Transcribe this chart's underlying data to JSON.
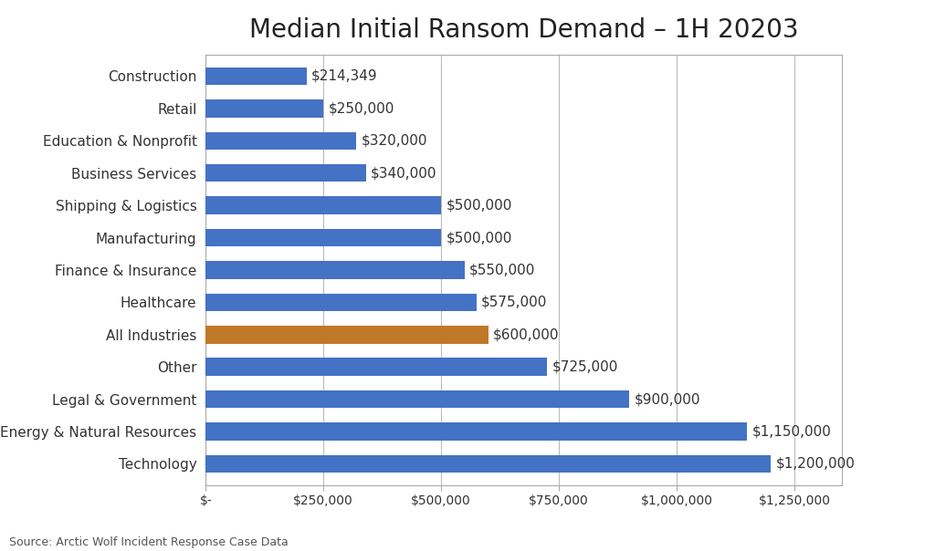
{
  "title": "Median Initial Ransom Demand – 1H 20203",
  "categories": [
    "Technology",
    "Energy & Natural Resources",
    "Legal & Government",
    "Other",
    "All Industries",
    "Healthcare",
    "Finance & Insurance",
    "Manufacturing",
    "Shipping & Logistics",
    "Business Services",
    "Education & Nonprofit",
    "Retail",
    "Construction"
  ],
  "values": [
    1200000,
    1150000,
    900000,
    725000,
    600000,
    575000,
    550000,
    500000,
    500000,
    340000,
    320000,
    250000,
    214349
  ],
  "labels": [
    "$1,200,000",
    "$1,150,000",
    "$900,000",
    "$725,000",
    "$600,000",
    "$575,000",
    "$550,000",
    "$500,000",
    "$500,000",
    "$340,000",
    "$320,000",
    "$250,000",
    "$214,349"
  ],
  "bar_colors": [
    "#4472C4",
    "#4472C4",
    "#4472C4",
    "#4472C4",
    "#C07828",
    "#4472C4",
    "#4472C4",
    "#4472C4",
    "#4472C4",
    "#4472C4",
    "#4472C4",
    "#4472C4",
    "#4472C4"
  ],
  "xlim": [
    0,
    1350000
  ],
  "xtick_values": [
    0,
    250000,
    500000,
    750000,
    1000000,
    1250000
  ],
  "xtick_labels": [
    "$-",
    "$250,000",
    "$500,000",
    "$750,000",
    "$1,000,000",
    "$1,250,000"
  ],
  "source_text": "Source: Arctic Wolf Incident Response Case Data",
  "title_fontsize": 20,
  "label_fontsize": 11,
  "tick_fontsize": 10,
  "source_fontsize": 9,
  "background_color": "#FFFFFF",
  "bar_height": 0.55,
  "grid_color": "#BBBBBB",
  "border_color": "#AAAAAA"
}
